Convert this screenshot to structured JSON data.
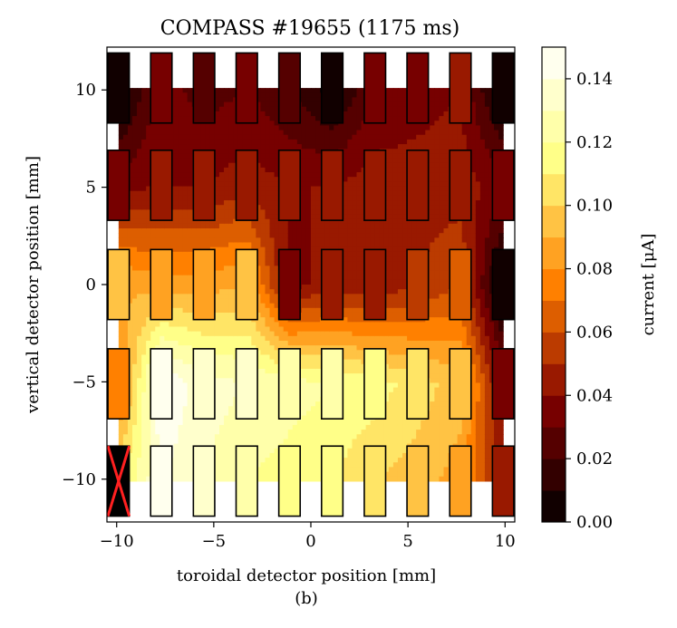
{
  "chart_data": {
    "type": "heatmap",
    "title": "COMPASS #19655 (1175 ms)",
    "xlabel": "toroidal detector position [mm]",
    "ylabel": "vertical detector position [mm]",
    "caption": "(b)",
    "xlim": [
      -10.5,
      10.5
    ],
    "ylim": [
      -12.2,
      12.2
    ],
    "xticks": [
      -10,
      -5,
      0,
      5,
      10
    ],
    "xtick_labels": [
      "−10",
      "−5",
      "0",
      "5",
      "10"
    ],
    "yticks": [
      10,
      5,
      0,
      -5,
      -10
    ],
    "ytick_labels": [
      "10",
      "5",
      "0",
      "−5",
      "−10"
    ],
    "colorbar": {
      "label": "current [μA]",
      "min": 0.0,
      "max": 0.15,
      "levels": 15,
      "ticks": [
        0.0,
        0.02,
        0.04,
        0.06,
        0.08,
        0.1,
        0.12,
        0.14
      ],
      "tick_labels": [
        "0.00",
        "0.02",
        "0.04",
        "0.06",
        "0.08",
        "0.10",
        "0.12",
        "0.14"
      ]
    },
    "detector_x": [
      -9.9,
      -7.7,
      -5.5,
      -3.3,
      -1.1,
      1.1,
      3.3,
      5.5,
      7.7,
      9.9
    ],
    "detector_y": [
      10.1,
      5.1,
      0.0,
      -5.1,
      -10.1
    ],
    "detector_size": {
      "width_mm": 1.1,
      "height_mm": 3.6
    },
    "values": [
      [
        0.0,
        0.035,
        0.025,
        0.03,
        0.02,
        0.005,
        0.03,
        0.035,
        0.04,
        0.0
      ],
      [
        0.035,
        0.04,
        0.04,
        0.045,
        0.04,
        0.04,
        0.045,
        0.045,
        0.045,
        0.035
      ],
      [
        0.09,
        0.085,
        0.085,
        0.09,
        0.035,
        0.045,
        0.04,
        0.05,
        0.06,
        0.0
      ],
      [
        0.075,
        0.15,
        0.135,
        0.13,
        0.125,
        0.12,
        0.115,
        0.105,
        0.095,
        0.035
      ],
      [
        null,
        0.14,
        0.13,
        0.12,
        0.115,
        0.11,
        0.1,
        0.095,
        0.085,
        0.045
      ]
    ],
    "faulty_detector": {
      "row": 4,
      "col": 0,
      "marker": "X",
      "color": "#ff2020"
    }
  }
}
